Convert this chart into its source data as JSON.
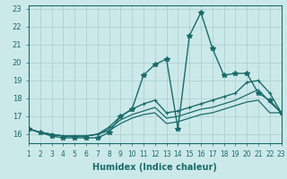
{
  "xlabel": "Humidex (Indice chaleur)",
  "bg_color": "#cce9e9",
  "grid_color": "#aacccc",
  "line_color": "#1a6b6b",
  "xlim": [
    1,
    23
  ],
  "ylim": [
    15.5,
    23.2
  ],
  "xticks": [
    1,
    2,
    3,
    4,
    5,
    6,
    7,
    8,
    9,
    10,
    11,
    12,
    13,
    14,
    15,
    16,
    17,
    18,
    19,
    20,
    21,
    22,
    23
  ],
  "yticks": [
    16,
    17,
    18,
    19,
    20,
    21,
    22,
    23
  ],
  "x": [
    1,
    2,
    3,
    4,
    5,
    6,
    7,
    8,
    9,
    10,
    11,
    12,
    13,
    14,
    15,
    16,
    17,
    18,
    19,
    20,
    21,
    22,
    23
  ],
  "line_volatile": [
    16.3,
    16.1,
    15.9,
    15.8,
    15.8,
    15.8,
    15.8,
    16.1,
    17.0,
    17.4,
    19.3,
    19.9,
    20.2,
    16.3,
    21.5,
    22.8,
    20.8,
    19.3,
    19.4,
    19.4,
    18.3,
    17.9,
    17.2
  ],
  "line_upper": [
    16.3,
    16.1,
    16.0,
    15.9,
    15.9,
    15.9,
    16.0,
    16.4,
    17.0,
    17.4,
    17.7,
    17.9,
    17.2,
    17.3,
    17.5,
    17.7,
    17.9,
    18.1,
    18.3,
    18.9,
    19.0,
    18.3,
    17.2
  ],
  "line_mid": [
    16.3,
    16.1,
    16.0,
    15.9,
    15.9,
    15.9,
    16.0,
    16.3,
    16.8,
    17.1,
    17.3,
    17.5,
    16.9,
    17.0,
    17.2,
    17.4,
    17.5,
    17.7,
    17.9,
    18.2,
    18.5,
    17.8,
    17.2
  ],
  "line_lower": [
    16.3,
    16.1,
    16.0,
    15.9,
    15.9,
    15.9,
    16.0,
    16.2,
    16.6,
    16.9,
    17.1,
    17.2,
    16.6,
    16.7,
    16.9,
    17.1,
    17.2,
    17.4,
    17.6,
    17.8,
    17.9,
    17.2,
    17.2
  ]
}
